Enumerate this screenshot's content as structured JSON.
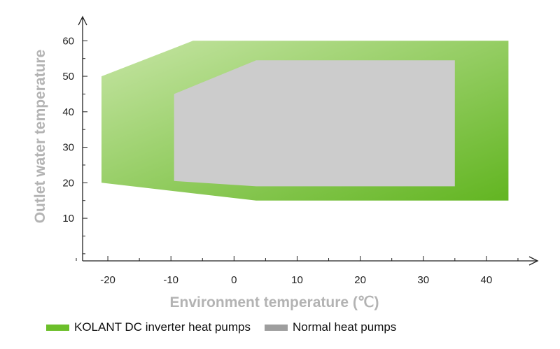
{
  "chart_data": {
    "type": "area",
    "xlabel": "Environment temperature (℃)",
    "ylabel": "Outlet water temperature",
    "xlim": [
      -24,
      48
    ],
    "ylim": [
      -2,
      64
    ],
    "x_ticks": [
      -20,
      -10,
      0,
      10,
      20,
      30,
      40
    ],
    "x_minor_step": 5,
    "y_ticks": [
      10,
      20,
      30,
      40,
      50,
      60
    ],
    "y_minor_step": 5,
    "series": [
      {
        "name": "KOLANT DC inverter heat pumps",
        "color": "#6cbf2a",
        "color_light": "#c3e3a0",
        "polygon": [
          [
            -21,
            50
          ],
          [
            -6.5,
            60
          ],
          [
            43.5,
            60
          ],
          [
            43.5,
            15
          ],
          [
            3.5,
            15
          ],
          [
            -21,
            20
          ]
        ]
      },
      {
        "name": "Normal heat pumps",
        "color": "#cccccc",
        "legend_color": "#9e9e9e",
        "polygon": [
          [
            -9.5,
            45
          ],
          [
            3.5,
            54.5
          ],
          [
            35,
            54.5
          ],
          [
            35,
            19
          ],
          [
            3.5,
            19
          ],
          [
            -9.5,
            20.5
          ]
        ]
      }
    ]
  },
  "legend": {
    "items": [
      {
        "label": "KOLANT DC inverter heat pumps",
        "color": "#6cbf2a"
      },
      {
        "label": "Normal heat pumps",
        "color": "#9e9e9e"
      }
    ]
  }
}
